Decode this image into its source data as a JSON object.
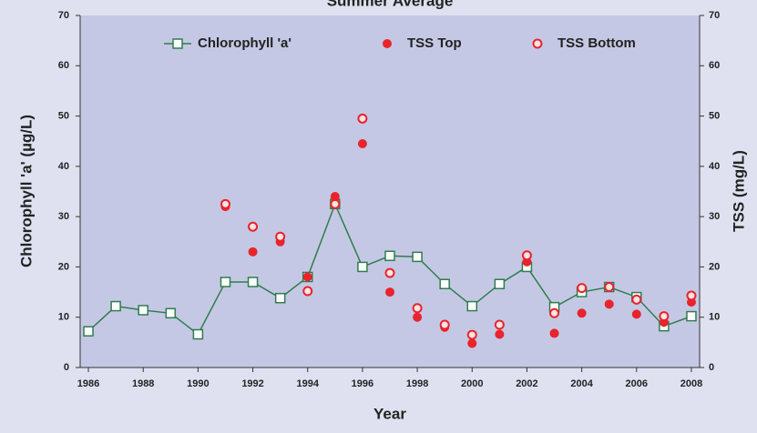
{
  "chart_data": {
    "type": "line",
    "title": "Summer Average",
    "xlabel": "Year",
    "ylabel": "Chlorophyll 'a' (µg/L)",
    "y2label": "TSS (mg/L)",
    "xlim": [
      1985.7,
      2008.3
    ],
    "xticks": [
      1986,
      1988,
      1990,
      1992,
      1994,
      1996,
      1998,
      2000,
      2002,
      2004,
      2006,
      2008
    ],
    "ylim": [
      0,
      70
    ],
    "yticks": [
      0,
      10,
      20,
      30,
      40,
      50,
      60,
      70
    ],
    "y2lim": [
      0,
      70
    ],
    "y2ticks": [
      0,
      10,
      20,
      30,
      40,
      50,
      60,
      70
    ],
    "series": [
      {
        "name": "Chlorophyll 'a'",
        "color": "#2e7d4f",
        "marker": "square-open",
        "line": true,
        "x": [
          1986,
          1987,
          1988,
          1989,
          1990,
          1991,
          1992,
          1993,
          1994,
          1995,
          1996,
          1997,
          1998,
          1999,
          2000,
          2001,
          2002,
          2003,
          2004,
          2005,
          2006,
          2007,
          2008
        ],
        "values": [
          7.2,
          12.2,
          11.4,
          10.8,
          6.6,
          17,
          17,
          13.8,
          18,
          32.5,
          20,
          22.2,
          22,
          16.6,
          12.2,
          16.6,
          20,
          12,
          15,
          16,
          14,
          8.2,
          10.2
        ]
      },
      {
        "name": "TSS Top",
        "color": "#e8242c",
        "marker": "circle-filled",
        "line": false,
        "axis": "y2",
        "x": [
          1991,
          1992,
          1993,
          1994,
          1995,
          1996,
          1997,
          1998,
          1999,
          2000,
          2001,
          2002,
          2003,
          2004,
          2005,
          2006,
          2007,
          2008
        ],
        "values": [
          32,
          23,
          25,
          18,
          34,
          44.5,
          15,
          10,
          8,
          4.8,
          6.6,
          21,
          6.8,
          10.8,
          12.6,
          10.6,
          9,
          13
        ]
      },
      {
        "name": "TSS Bottom",
        "color": "#e8242c",
        "marker": "circle-open",
        "line": false,
        "axis": "y2",
        "x": [
          1991,
          1992,
          1993,
          1994,
          1995,
          1996,
          1997,
          1998,
          1999,
          2000,
          2001,
          2002,
          2003,
          2004,
          2005,
          2006,
          2007,
          2008
        ],
        "values": [
          32.5,
          28,
          26,
          15.2,
          32.5,
          49.5,
          18.8,
          11.8,
          8.5,
          6.5,
          8.5,
          22.3,
          10.8,
          15.8,
          16,
          13.5,
          10.2,
          14.3
        ]
      }
    ]
  }
}
